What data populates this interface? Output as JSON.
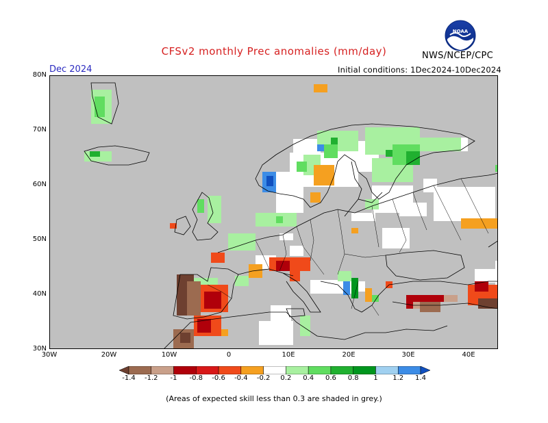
{
  "title": "CFSv2 monthly Prec anomalies (mm/day)",
  "month_label": "Dec 2024",
  "initial_conditions": "Initial conditions: 1Dec2024-10Dec2024",
  "agency": "NWS/NCEP/CPC",
  "logo_text": "NOAA",
  "lat_labels": [
    "80N",
    "70N",
    "60N",
    "50N",
    "40N",
    "30N"
  ],
  "lon_labels": [
    "30W",
    "20W",
    "10W",
    "0",
    "10E",
    "20E",
    "30E",
    "40E"
  ],
  "colorbar": {
    "labels": [
      "-1.4",
      "-1.2",
      "-1",
      "-0.8",
      "-0.6",
      "-0.4",
      "-0.2",
      "0.2",
      "0.4",
      "0.6",
      "0.8",
      "1",
      "1.2",
      "1.4"
    ],
    "colors": [
      "#6e4030",
      "#9c6b50",
      "#c9a08a",
      "#b0000a",
      "#d81818",
      "#f04a1a",
      "#f5a020",
      "#ffffff",
      "#a8f0a0",
      "#60dd60",
      "#20b030",
      "#00961e",
      "#a0d0f0",
      "#3c8ce6",
      "#1050c0"
    ]
  },
  "footnote": "(Areas of expected skill less than 0.3 are shaded in grey.)",
  "colors": {
    "grey_mask": "#c0c0c0",
    "title": "#d62020",
    "month": "#2a2ac0"
  }
}
